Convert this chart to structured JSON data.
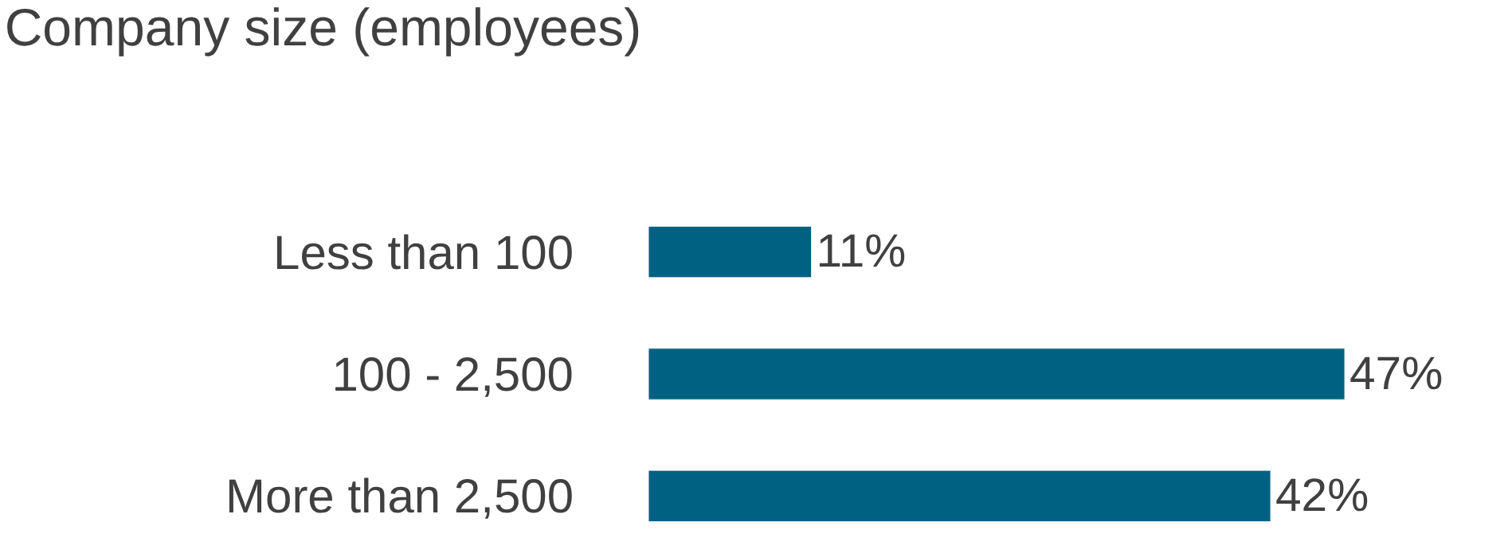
{
  "chart_data": {
    "type": "bar",
    "orientation": "horizontal",
    "title": "Company size (employees)",
    "categories": [
      "Less than 100",
      "100 - 2,500",
      "More than 2,500"
    ],
    "values": [
      11,
      47,
      42
    ],
    "value_labels": [
      "11%",
      "47%",
      "42%"
    ],
    "color": "#006182"
  }
}
